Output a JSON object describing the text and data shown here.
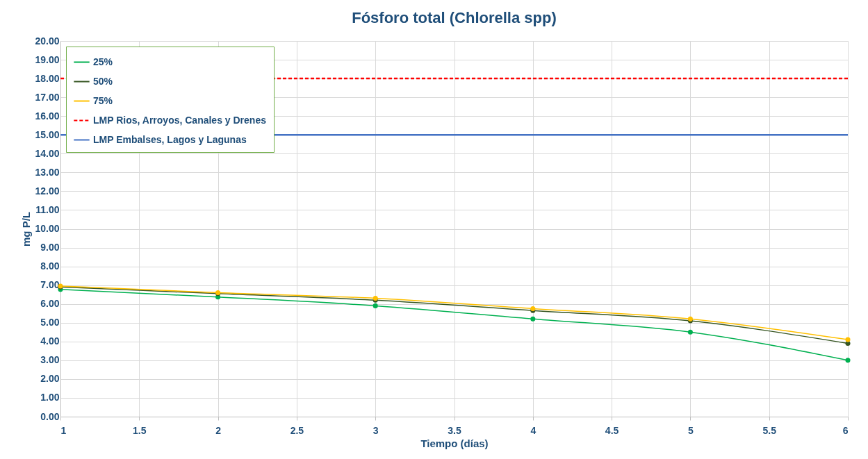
{
  "chart_data": {
    "type": "line",
    "title": "Fósforo total  (Chlorella spp)",
    "xlabel": "Tiempo (días)",
    "ylabel": "mg P/L",
    "x": [
      1,
      2,
      3,
      4,
      5,
      6
    ],
    "series": [
      {
        "name": "25%",
        "color": "#00b050",
        "values": [
          6.77,
          6.37,
          5.9,
          5.2,
          4.5,
          3.0
        ]
      },
      {
        "name": "50%",
        "color": "#375623",
        "values": [
          6.9,
          6.55,
          6.2,
          5.65,
          5.1,
          3.9
        ]
      },
      {
        "name": "75%",
        "color": "#ffc000",
        "values": [
          6.95,
          6.6,
          6.3,
          5.75,
          5.2,
          4.1
        ]
      }
    ],
    "ref_lines": [
      {
        "axis": "y",
        "value": 18,
        "label": "LMP Rios, Arroyos, Canales y Drenes",
        "color": "#ff0000",
        "line_style": "dashed"
      },
      {
        "axis": "y",
        "value": 15,
        "label": "LMP Embalses, Lagos y Lagunas",
        "color": "#4472c4",
        "line_style": "solid"
      }
    ],
    "xlim": [
      1,
      6
    ],
    "xticks": [
      1,
      1.5,
      2,
      2.5,
      3,
      3.5,
      4,
      4.5,
      5,
      5.5,
      6
    ],
    "ylim": [
      0,
      20
    ],
    "yticks": [
      {
        "value": 0,
        "label": "0.00"
      },
      {
        "value": 1,
        "label": "1.00"
      },
      {
        "value": 2,
        "label": "2.00"
      },
      {
        "value": 3,
        "label": "3.00"
      },
      {
        "value": 4,
        "label": "4.00"
      },
      {
        "value": 5,
        "label": "5.00"
      },
      {
        "value": 6,
        "label": "6.00"
      },
      {
        "value": 7,
        "label": "7.00"
      },
      {
        "value": 8,
        "label": "8.00"
      },
      {
        "value": 9,
        "label": "9.00"
      },
      {
        "value": 10,
        "label": "10.00"
      },
      {
        "value": 11,
        "label": "11.00"
      },
      {
        "value": 12,
        "label": "12.00"
      },
      {
        "value": 13,
        "label": "13.00"
      },
      {
        "value": 14,
        "label": "14.00"
      },
      {
        "value": 15,
        "label": "15.00"
      },
      {
        "value": 16,
        "label": "16.00"
      },
      {
        "value": 17,
        "label": "17.00"
      },
      {
        "value": 18,
        "label": "18.00"
      },
      {
        "value": 19,
        "label": "19.00"
      },
      {
        "value": 20,
        "label": "20.00"
      }
    ],
    "grid": true,
    "legend": "top left",
    "marker": "circle",
    "line_style": "solid"
  }
}
